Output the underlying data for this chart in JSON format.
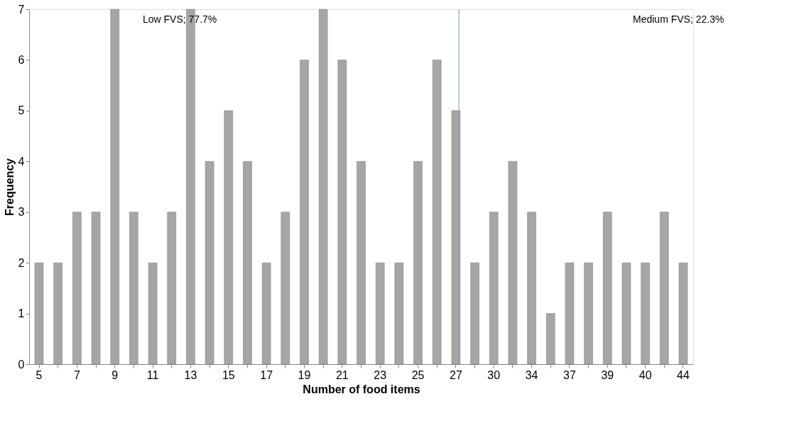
{
  "chart_data": {
    "type": "bar",
    "xlabel": "Number of food items",
    "ylabel": "Frequency",
    "categories": [
      "5",
      null,
      "7",
      null,
      "9",
      null,
      "11",
      null,
      "13",
      null,
      "15",
      null,
      "17",
      null,
      "19",
      null,
      "21",
      null,
      "23",
      null,
      "25",
      null,
      "27",
      null,
      "30",
      null,
      "34",
      null,
      "37",
      null,
      "39",
      null,
      "40",
      null,
      "44"
    ],
    "values": [
      2,
      2,
      3,
      3,
      7,
      3,
      2,
      3,
      7,
      4,
      5,
      4,
      2,
      3,
      6,
      7,
      6,
      4,
      2,
      2,
      4,
      6,
      5,
      2,
      3,
      4,
      3,
      1,
      2,
      2,
      3,
      2,
      2,
      3,
      2
    ],
    "color": "#a6a6a6",
    "ylim": [
      0,
      7
    ],
    "yticks": [
      0,
      1,
      2,
      3,
      4,
      5,
      6,
      7
    ],
    "grid": false,
    "ref_lines": [
      {
        "axis": "x",
        "value": "27",
        "color": "#7f9bb5"
      }
    ],
    "annotations": [
      "Low FVS; 77.7%",
      "Medium FVS; 22.3%"
    ]
  }
}
